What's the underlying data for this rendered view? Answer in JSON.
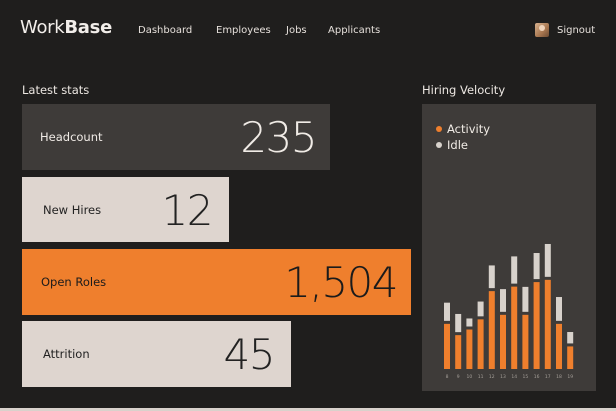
{
  "brand": {
    "part1": "Work",
    "part2": "Base"
  },
  "nav": {
    "dashboard": "Dashboard",
    "employees": "Employees",
    "jobs": "Jobs",
    "applicants": "Applicants"
  },
  "user": {
    "signout": "Signout"
  },
  "stats": {
    "title": "Latest stats",
    "items": [
      {
        "label": "Headcount",
        "value": "235"
      },
      {
        "label": "New Hires",
        "value": "12"
      },
      {
        "label": "Open Roles",
        "value": "1,504"
      },
      {
        "label": "Attrition",
        "value": "45"
      }
    ]
  },
  "panel": {
    "title": "Hiring Velocity"
  },
  "colors": {
    "accent": "#ef7f2d",
    "idle": "#d8d2cc",
    "panel": "#3e3b39"
  },
  "chart_data": {
    "type": "bar",
    "stacked": true,
    "categories": [
      "8",
      "9",
      "10",
      "11",
      "12",
      "13",
      "14",
      "15",
      "16",
      "17",
      "18",
      "19"
    ],
    "series": [
      {
        "name": "Activity",
        "color": "#ef7f2d",
        "values": [
          40,
          30,
          35,
          44,
          69,
          48,
          73,
          48,
          77,
          79,
          40,
          20
        ]
      },
      {
        "name": "Idle",
        "color": "#d8d2cc",
        "values": [
          17,
          17,
          8,
          14,
          21,
          21,
          25,
          23,
          24,
          30,
          22,
          11
        ]
      }
    ],
    "ylim": [
      0,
      140
    ],
    "legend": "top-left"
  }
}
